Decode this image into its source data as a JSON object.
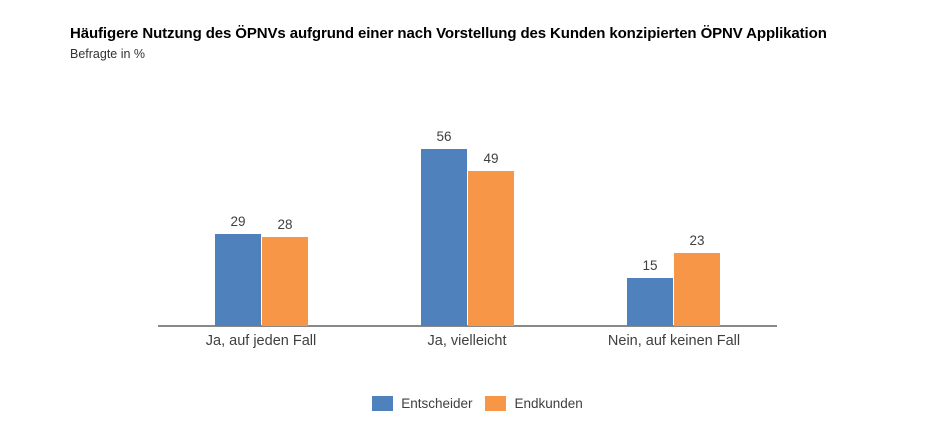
{
  "title": "Häufigere Nutzung des ÖPNVs aufgrund einer nach Vorstellung des Kunden konzipierten ÖPNV Applikation",
  "subtitle": "Befragte in %",
  "chart_data": {
    "type": "bar",
    "categories": [
      "Ja, auf jeden Fall",
      "Ja, vielleicht",
      "Nein, auf keinen Fall"
    ],
    "series": [
      {
        "name": "Entscheider",
        "color": "#4F81BD",
        "values": [
          29,
          56,
          15
        ]
      },
      {
        "name": "Endkunden",
        "color": "#F79646",
        "values": [
          28,
          49,
          23
        ]
      }
    ],
    "title": "Häufigere Nutzung des ÖPNVs aufgrund einer nach Vorstellung des Kunden konzipierten ÖPNV Applikation",
    "xlabel": "",
    "ylabel": "Befragte in %",
    "ylim": [
      0,
      60
    ],
    "grid": false,
    "value_labels": true,
    "legend_position": "bottom",
    "axis_color": "#898989",
    "label_color": "#404040"
  }
}
